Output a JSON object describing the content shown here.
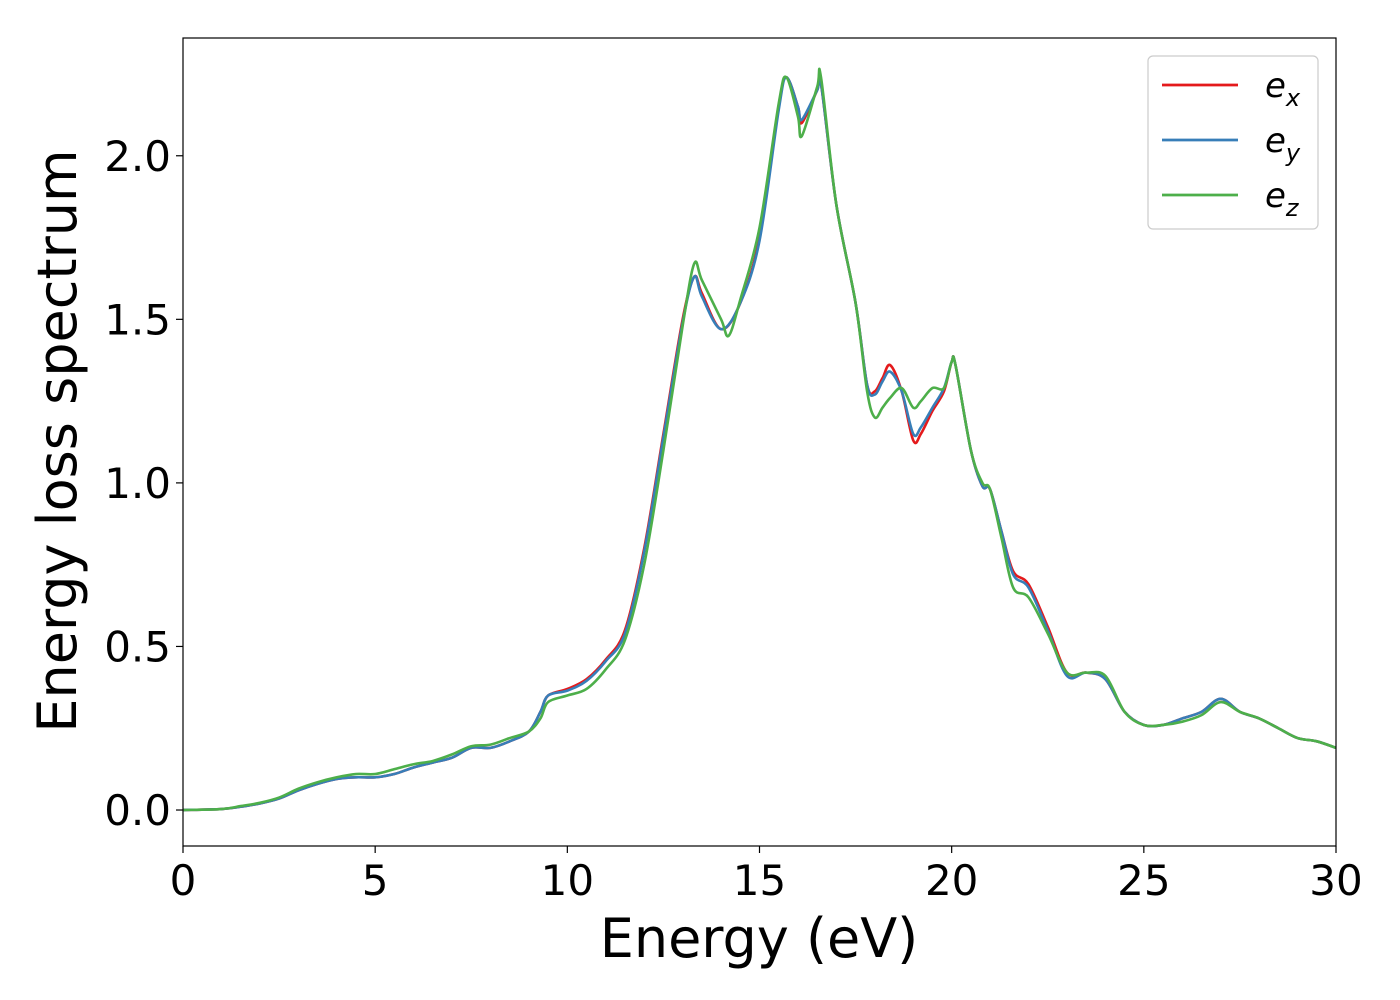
{
  "chart_data": {
    "type": "line",
    "xlabel": "Energy (eV)",
    "ylabel": "Energy loss spectrum",
    "xlim": [
      0,
      30
    ],
    "ylim": [
      -0.11,
      2.36
    ],
    "x_ticks": [
      0,
      5,
      10,
      15,
      20,
      25,
      30
    ],
    "x_tick_labels": [
      "0",
      "5",
      "10",
      "15",
      "20",
      "25",
      "30"
    ],
    "y_ticks": [
      0.0,
      0.5,
      1.0,
      1.5,
      2.0
    ],
    "y_tick_labels": [
      "0.0",
      "0.5",
      "1.0",
      "1.5",
      "2.0"
    ],
    "grid": false,
    "legend_position": "top-right",
    "series": [
      {
        "name": "e",
        "subscript": "x",
        "color": "#e41a1c",
        "x": [
          0,
          1,
          1.5,
          2,
          2.5,
          3,
          3.5,
          4,
          4.5,
          5,
          5.5,
          6,
          6.5,
          7,
          7.5,
          8,
          8.5,
          9,
          9.3,
          9.5,
          10,
          10.5,
          11,
          11.5,
          12,
          12.5,
          13,
          13.3,
          13.5,
          14,
          14.5,
          15,
          15.5,
          15.7,
          16,
          16.1,
          16.5,
          16.6,
          17,
          17.5,
          17.8,
          18,
          18.2,
          18.4,
          18.7,
          19,
          19.2,
          19.5,
          19.8,
          20,
          20.1,
          20.5,
          20.8,
          21,
          21.3,
          21.6,
          22,
          22.5,
          23,
          23.5,
          24,
          24.5,
          25,
          25.5,
          26,
          26.5,
          27,
          27.5,
          28,
          28.5,
          29,
          29.5,
          30
        ],
        "values": [
          0.0,
          0.003,
          0.01,
          0.02,
          0.035,
          0.06,
          0.08,
          0.095,
          0.1,
          0.1,
          0.11,
          0.13,
          0.145,
          0.16,
          0.19,
          0.19,
          0.21,
          0.24,
          0.3,
          0.35,
          0.37,
          0.4,
          0.46,
          0.55,
          0.8,
          1.15,
          1.5,
          1.63,
          1.58,
          1.47,
          1.55,
          1.75,
          2.15,
          2.24,
          2.15,
          2.1,
          2.2,
          2.22,
          1.85,
          1.55,
          1.3,
          1.28,
          1.32,
          1.36,
          1.28,
          1.13,
          1.15,
          1.22,
          1.28,
          1.37,
          1.36,
          1.1,
          0.99,
          0.98,
          0.85,
          0.73,
          0.69,
          0.56,
          0.42,
          0.42,
          0.4,
          0.3,
          0.26,
          0.26,
          0.28,
          0.3,
          0.34,
          0.3,
          0.28,
          0.25,
          0.22,
          0.21,
          0.19
        ]
      },
      {
        "name": "e",
        "subscript": "y",
        "color": "#377eb8",
        "x": [
          0,
          1,
          1.5,
          2,
          2.5,
          3,
          3.5,
          4,
          4.5,
          5,
          5.5,
          6,
          6.5,
          7,
          7.5,
          8,
          8.5,
          9,
          9.3,
          9.5,
          10,
          10.5,
          11,
          11.5,
          12,
          12.5,
          13,
          13.3,
          13.5,
          14,
          14.5,
          15,
          15.5,
          15.7,
          16,
          16.1,
          16.5,
          16.6,
          17,
          17.5,
          17.8,
          18,
          18.2,
          18.4,
          18.7,
          19,
          19.2,
          19.5,
          19.8,
          20,
          20.1,
          20.5,
          20.8,
          21,
          21.3,
          21.6,
          22,
          22.5,
          23,
          23.5,
          24,
          24.5,
          25,
          25.5,
          26,
          26.5,
          27,
          27.5,
          28,
          28.5,
          29,
          29.5,
          30
        ],
        "values": [
          0.0,
          0.003,
          0.01,
          0.02,
          0.035,
          0.06,
          0.08,
          0.095,
          0.1,
          0.1,
          0.11,
          0.13,
          0.145,
          0.16,
          0.19,
          0.19,
          0.21,
          0.24,
          0.3,
          0.35,
          0.365,
          0.395,
          0.455,
          0.54,
          0.79,
          1.14,
          1.49,
          1.63,
          1.57,
          1.47,
          1.55,
          1.74,
          2.14,
          2.24,
          2.15,
          2.11,
          2.2,
          2.22,
          1.85,
          1.55,
          1.3,
          1.27,
          1.31,
          1.34,
          1.28,
          1.15,
          1.17,
          1.23,
          1.29,
          1.37,
          1.36,
          1.1,
          0.99,
          0.98,
          0.85,
          0.72,
          0.68,
          0.55,
          0.41,
          0.42,
          0.4,
          0.3,
          0.26,
          0.26,
          0.28,
          0.3,
          0.34,
          0.3,
          0.28,
          0.25,
          0.22,
          0.21,
          0.19
        ]
      },
      {
        "name": "e",
        "subscript": "z",
        "color": "#4daf4a",
        "x": [
          0,
          1,
          1.5,
          2,
          2.5,
          3,
          3.5,
          4,
          4.5,
          5,
          5.5,
          6,
          6.5,
          7,
          7.5,
          8,
          8.5,
          9,
          9.3,
          9.5,
          10,
          10.5,
          11,
          11.5,
          12,
          12.5,
          13,
          13.3,
          13.5,
          14,
          14.2,
          14.5,
          15,
          15.5,
          15.7,
          16,
          16.1,
          16.5,
          16.6,
          17,
          17.5,
          17.8,
          18,
          18.2,
          18.4,
          18.7,
          19,
          19.2,
          19.5,
          19.8,
          20,
          20.1,
          20.5,
          20.8,
          21,
          21.3,
          21.6,
          22,
          22.5,
          23,
          23.5,
          24,
          24.5,
          25,
          25.5,
          26,
          26.5,
          27,
          27.5,
          28,
          28.5,
          29,
          29.5,
          30
        ],
        "values": [
          0.0,
          0.003,
          0.012,
          0.022,
          0.038,
          0.065,
          0.085,
          0.1,
          0.11,
          0.11,
          0.125,
          0.14,
          0.15,
          0.17,
          0.195,
          0.2,
          0.22,
          0.24,
          0.28,
          0.33,
          0.35,
          0.37,
          0.43,
          0.52,
          0.75,
          1.1,
          1.48,
          1.67,
          1.62,
          1.5,
          1.45,
          1.56,
          1.78,
          2.16,
          2.24,
          2.12,
          2.06,
          2.21,
          2.24,
          1.85,
          1.55,
          1.28,
          1.2,
          1.23,
          1.26,
          1.29,
          1.23,
          1.25,
          1.29,
          1.29,
          1.37,
          1.36,
          1.1,
          1.0,
          0.98,
          0.83,
          0.68,
          0.65,
          0.54,
          0.42,
          0.42,
          0.41,
          0.3,
          0.26,
          0.26,
          0.27,
          0.29,
          0.33,
          0.3,
          0.28,
          0.25,
          0.22,
          0.21,
          0.19
        ]
      }
    ]
  }
}
